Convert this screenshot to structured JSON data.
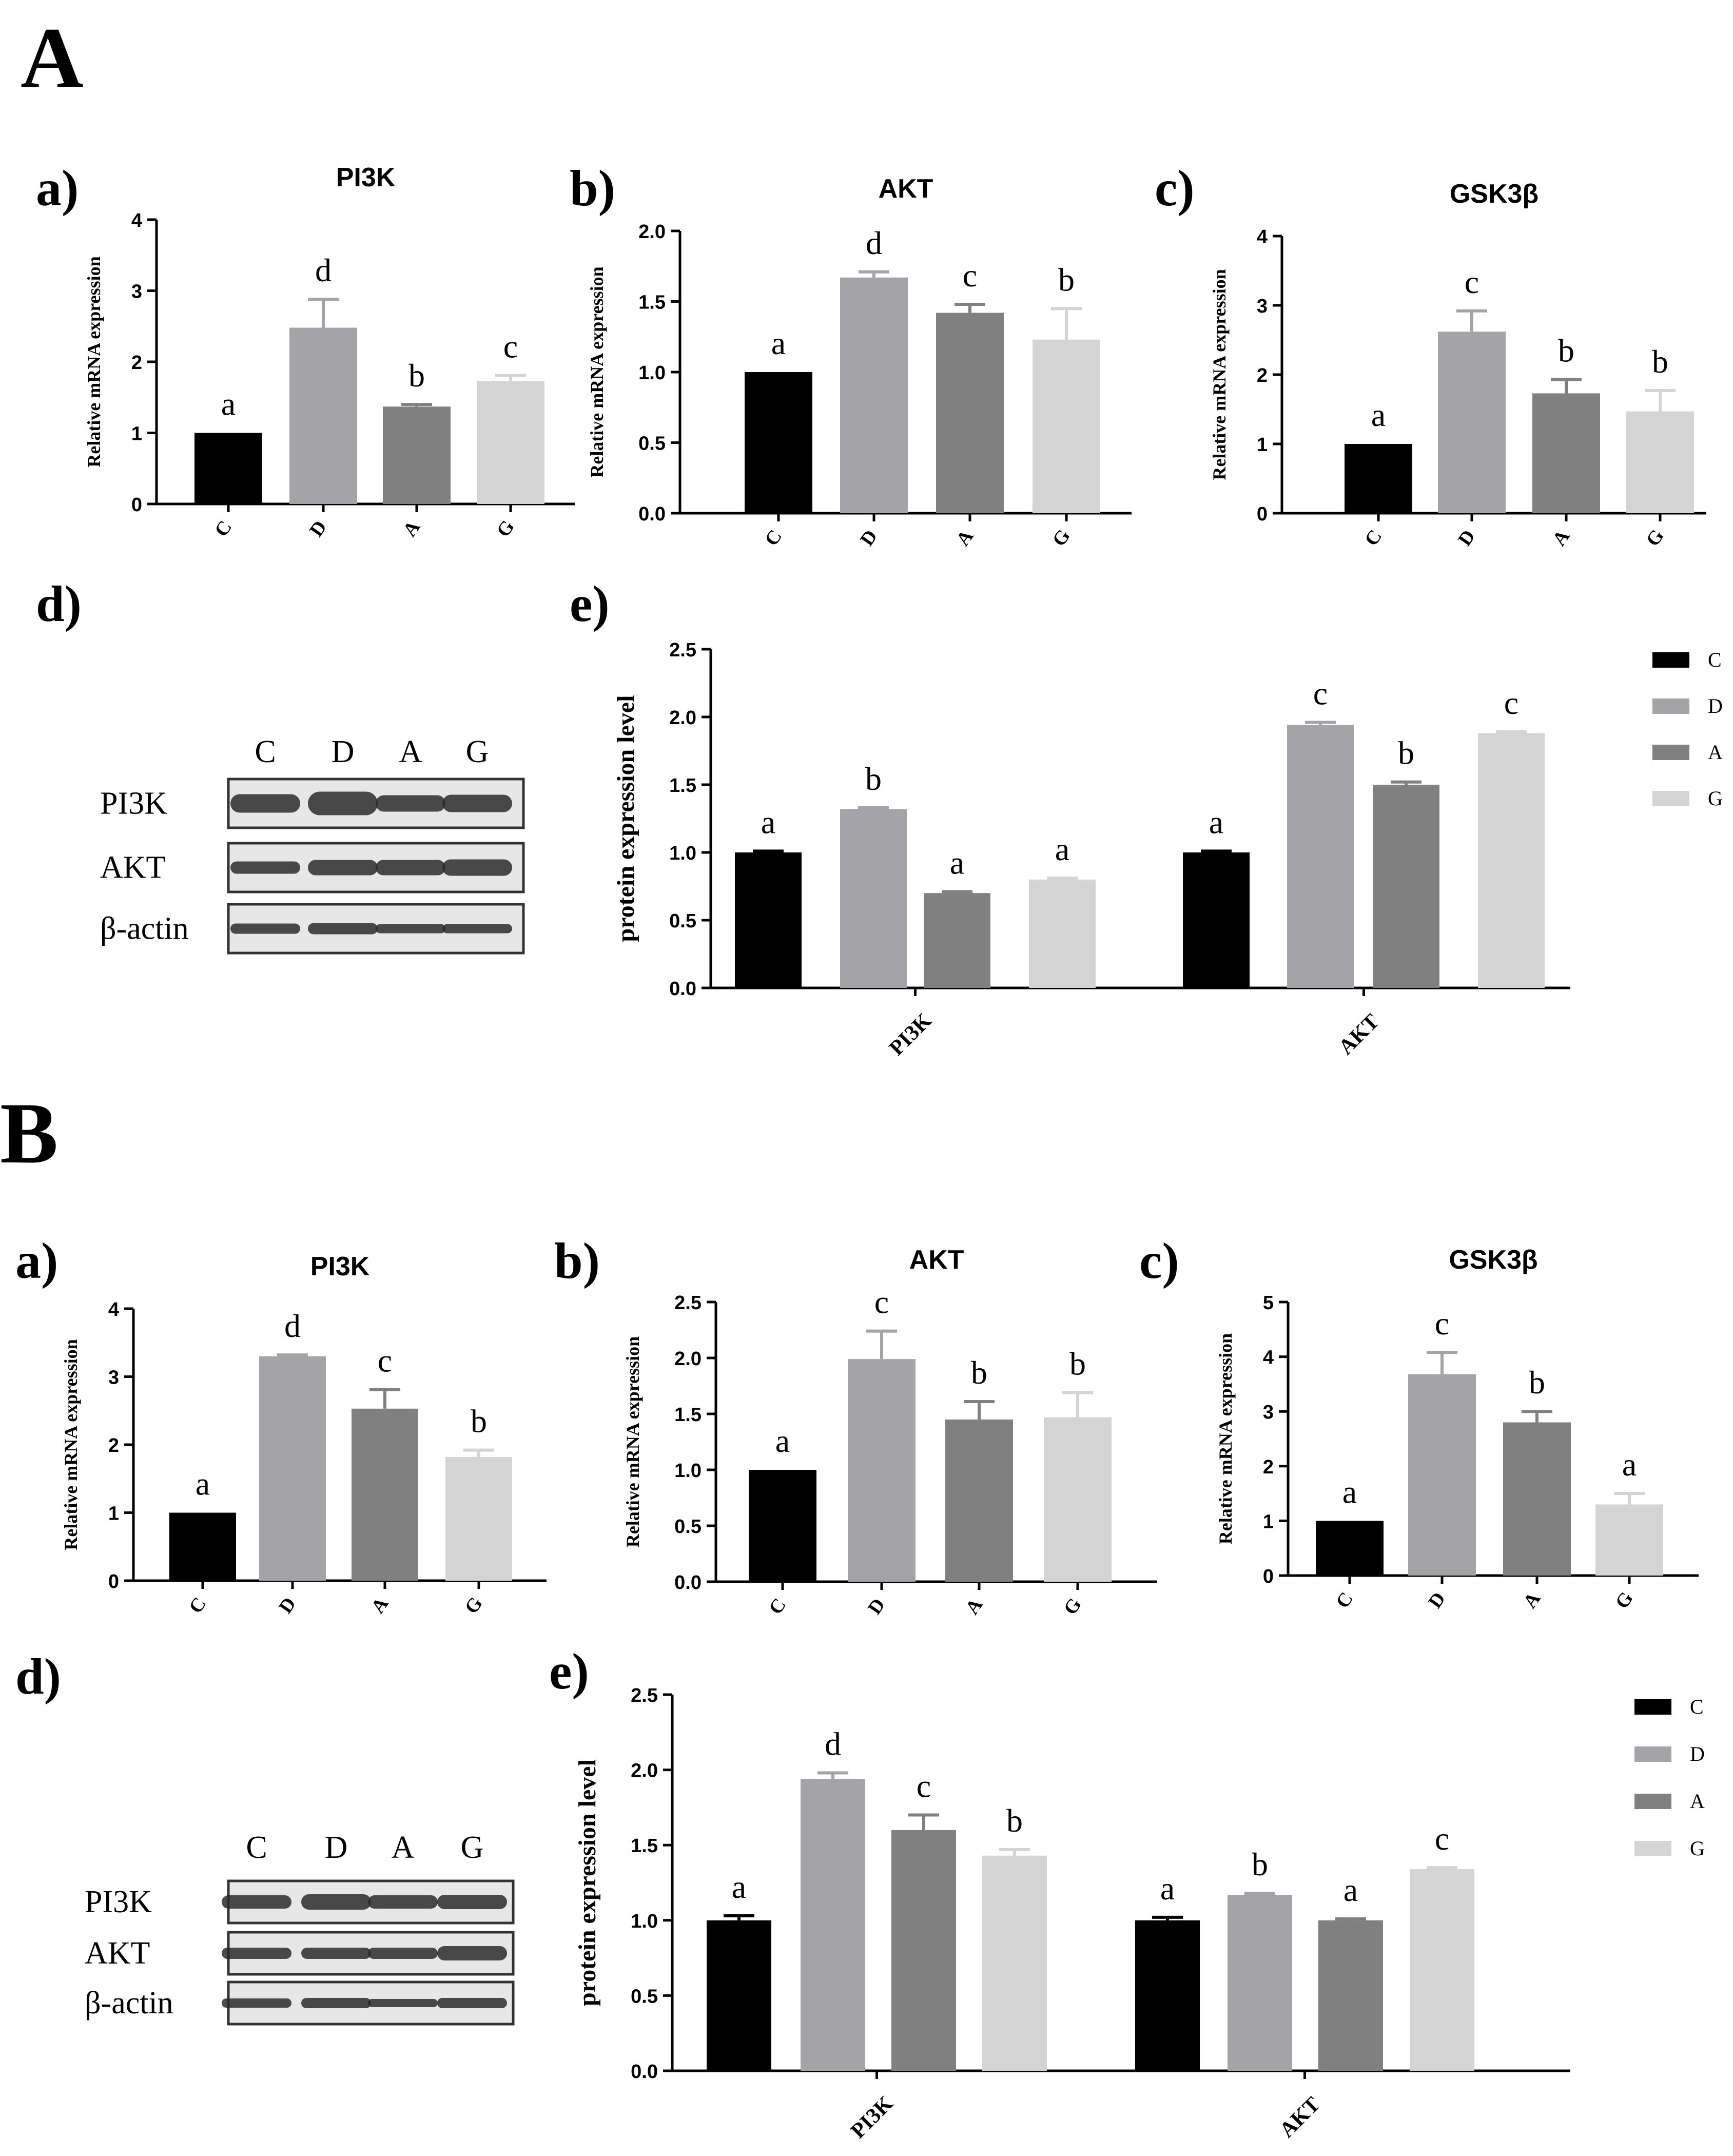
{
  "colors": {
    "C": "#000000",
    "D": "#a3a3a8",
    "A": "#808080",
    "G": "#d4d4d4",
    "axis": "#000000"
  },
  "legend": [
    {
      "key": "C",
      "label": "C"
    },
    {
      "key": "D",
      "label": "D"
    },
    {
      "key": "A",
      "label": "A"
    },
    {
      "key": "G",
      "label": "G"
    }
  ],
  "western_blot": {
    "lanes": [
      "C",
      "D",
      "A",
      "G"
    ],
    "rows": [
      "PI3K",
      "AKT",
      "β-actin"
    ]
  },
  "chart_data": [
    {
      "id": "A_a",
      "panel": "A",
      "label": "a)",
      "type": "bar",
      "title": "PI3K",
      "ylabel": "Relative mRNA expression",
      "xlabel": "",
      "ylim": [
        0,
        4
      ],
      "yticks": [
        0,
        1,
        2,
        3,
        4
      ],
      "ytick_labels": [
        "0",
        "1",
        "2",
        "3",
        "4"
      ],
      "categories": [
        "C",
        "D",
        "A",
        "G"
      ],
      "values": [
        1.0,
        2.48,
        1.37,
        1.73
      ],
      "errors": [
        0,
        0.4,
        0.03,
        0.08
      ],
      "letters": [
        "a",
        "d",
        "b",
        "c"
      ]
    },
    {
      "id": "A_b",
      "panel": "A",
      "label": "b)",
      "type": "bar",
      "title": "AKT",
      "ylabel": "Relative mRNA expression",
      "xlabel": "",
      "ylim": [
        0,
        2.0
      ],
      "yticks": [
        0,
        0.5,
        1.0,
        1.5,
        2.0
      ],
      "ytick_labels": [
        "0.0",
        "0.5",
        "1.0",
        "1.5",
        "2.0"
      ],
      "categories": [
        "C",
        "D",
        "A",
        "G"
      ],
      "values": [
        1.0,
        1.67,
        1.42,
        1.23
      ],
      "errors": [
        0,
        0.04,
        0.06,
        0.22
      ],
      "letters": [
        "a",
        "d",
        "c",
        "b"
      ]
    },
    {
      "id": "A_c",
      "panel": "A",
      "label": "c)",
      "type": "bar",
      "title": "GSK3β",
      "ylabel": "Relative mRNA expression",
      "xlabel": "",
      "ylim": [
        0,
        4
      ],
      "yticks": [
        0,
        1,
        2,
        3,
        4
      ],
      "ytick_labels": [
        "0",
        "1",
        "2",
        "3",
        "4"
      ],
      "categories": [
        "C",
        "D",
        "A",
        "G"
      ],
      "values": [
        1.0,
        2.62,
        1.73,
        1.47
      ],
      "errors": [
        0,
        0.3,
        0.2,
        0.3
      ],
      "letters": [
        "a",
        "c",
        "b",
        "b"
      ]
    },
    {
      "id": "A_e",
      "panel": "A",
      "label": "e)",
      "type": "bar",
      "title": "",
      "ylabel": "protein expression level",
      "xlabel": "",
      "ylim": [
        0,
        2.5
      ],
      "yticks": [
        0,
        0.5,
        1.0,
        1.5,
        2.0,
        2.5
      ],
      "ytick_labels": [
        "0.0",
        "0.5",
        "1.0",
        "1.5",
        "2.0",
        "2.5"
      ],
      "categories": [
        "PI3K",
        "AKT"
      ],
      "series": [
        {
          "name": "C",
          "values": [
            1.0,
            1.0
          ],
          "errors": [
            0.01,
            0.01
          ],
          "letters": [
            "a",
            "a"
          ]
        },
        {
          "name": "D",
          "values": [
            1.32,
            1.94
          ],
          "errors": [
            0.01,
            0.02
          ],
          "letters": [
            "b",
            "c"
          ]
        },
        {
          "name": "A",
          "values": [
            0.7,
            1.5
          ],
          "errors": [
            0.01,
            0.02
          ],
          "letters": [
            "a",
            "b"
          ]
        },
        {
          "name": "G",
          "values": [
            0.8,
            1.88
          ],
          "errors": [
            0.01,
            0.01
          ],
          "letters": [
            "a",
            "c"
          ]
        }
      ]
    },
    {
      "id": "B_a",
      "panel": "B",
      "label": "a)",
      "type": "bar",
      "title": "PI3K",
      "ylabel": "Relative mRNA expression",
      "xlabel": "",
      "ylim": [
        0,
        4
      ],
      "yticks": [
        0,
        1,
        2,
        3,
        4
      ],
      "ytick_labels": [
        "0",
        "1",
        "2",
        "3",
        "4"
      ],
      "categories": [
        "C",
        "D",
        "A",
        "G"
      ],
      "values": [
        1.0,
        3.3,
        2.53,
        1.82
      ],
      "errors": [
        0,
        0.02,
        0.28,
        0.1
      ],
      "letters": [
        "a",
        "d",
        "c",
        "b"
      ]
    },
    {
      "id": "B_b",
      "panel": "B",
      "label": "b)",
      "type": "bar",
      "title": "AKT",
      "ylabel": "Relative mRNA expression",
      "xlabel": "",
      "ylim": [
        0,
        2.5
      ],
      "yticks": [
        0,
        0.5,
        1.0,
        1.5,
        2.0,
        2.5
      ],
      "ytick_labels": [
        "0.0",
        "0.5",
        "1.0",
        "1.5",
        "2.0",
        "2.5"
      ],
      "categories": [
        "C",
        "D",
        "A",
        "G"
      ],
      "values": [
        1.0,
        1.99,
        1.45,
        1.47
      ],
      "errors": [
        0,
        0.25,
        0.16,
        0.22
      ],
      "letters": [
        "a",
        "c",
        "b",
        "b"
      ]
    },
    {
      "id": "B_c",
      "panel": "B",
      "label": "c)",
      "type": "bar",
      "title": "GSK3β",
      "ylabel": "Relative mRNA expression",
      "xlabel": "",
      "ylim": [
        0,
        5
      ],
      "yticks": [
        0,
        1,
        2,
        3,
        4,
        5
      ],
      "ytick_labels": [
        "0",
        "1",
        "2",
        "3",
        "4",
        "5"
      ],
      "categories": [
        "C",
        "D",
        "A",
        "G"
      ],
      "values": [
        1.0,
        3.68,
        2.8,
        1.3
      ],
      "errors": [
        0,
        0.4,
        0.2,
        0.2
      ],
      "letters": [
        "a",
        "c",
        "b",
        "a"
      ]
    },
    {
      "id": "B_e",
      "panel": "B",
      "label": "e)",
      "type": "bar",
      "title": "",
      "ylabel": "protein expression level",
      "xlabel": "",
      "ylim": [
        0,
        2.5
      ],
      "yticks": [
        0,
        0.5,
        1.0,
        1.5,
        2.0,
        2.5
      ],
      "ytick_labels": [
        "0.0",
        "0.5",
        "1.0",
        "1.5",
        "2.0",
        "2.5"
      ],
      "categories": [
        "PI3K",
        "AKT"
      ],
      "series": [
        {
          "name": "C",
          "values": [
            1.0,
            1.0
          ],
          "errors": [
            0.03,
            0.02
          ],
          "letters": [
            "a",
            "a"
          ]
        },
        {
          "name": "D",
          "values": [
            1.94,
            1.17
          ],
          "errors": [
            0.04,
            0.01
          ],
          "letters": [
            "d",
            "b"
          ]
        },
        {
          "name": "A",
          "values": [
            1.6,
            1.0
          ],
          "errors": [
            0.1,
            0.01
          ],
          "letters": [
            "c",
            "a"
          ]
        },
        {
          "name": "G",
          "values": [
            1.43,
            1.34
          ],
          "errors": [
            0.04,
            0.01
          ],
          "letters": [
            "b",
            "c"
          ]
        }
      ]
    }
  ],
  "panels": [
    {
      "label": "A",
      "wb_label": "d)"
    },
    {
      "label": "B",
      "wb_label": "d)"
    }
  ]
}
